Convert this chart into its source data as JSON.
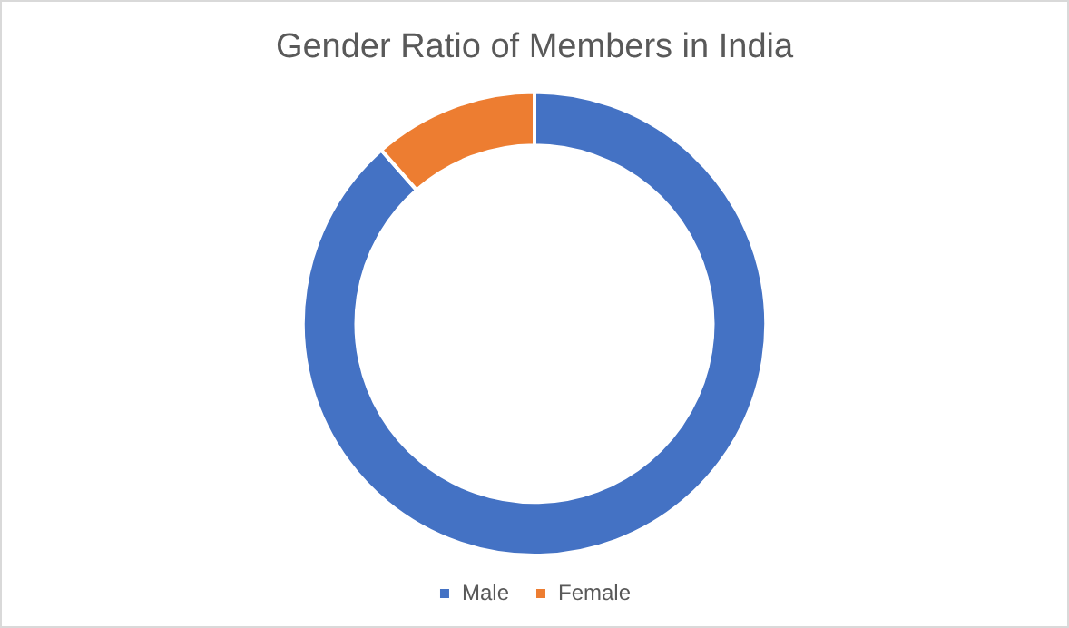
{
  "chart_data": {
    "type": "donut",
    "title": "Gender Ratio of Members in India",
    "categories": [
      "Male",
      "Female"
    ],
    "values": [
      88.5,
      11.5
    ],
    "colors": [
      "#4472c4",
      "#ed7d31"
    ],
    "legend": "bottom"
  }
}
